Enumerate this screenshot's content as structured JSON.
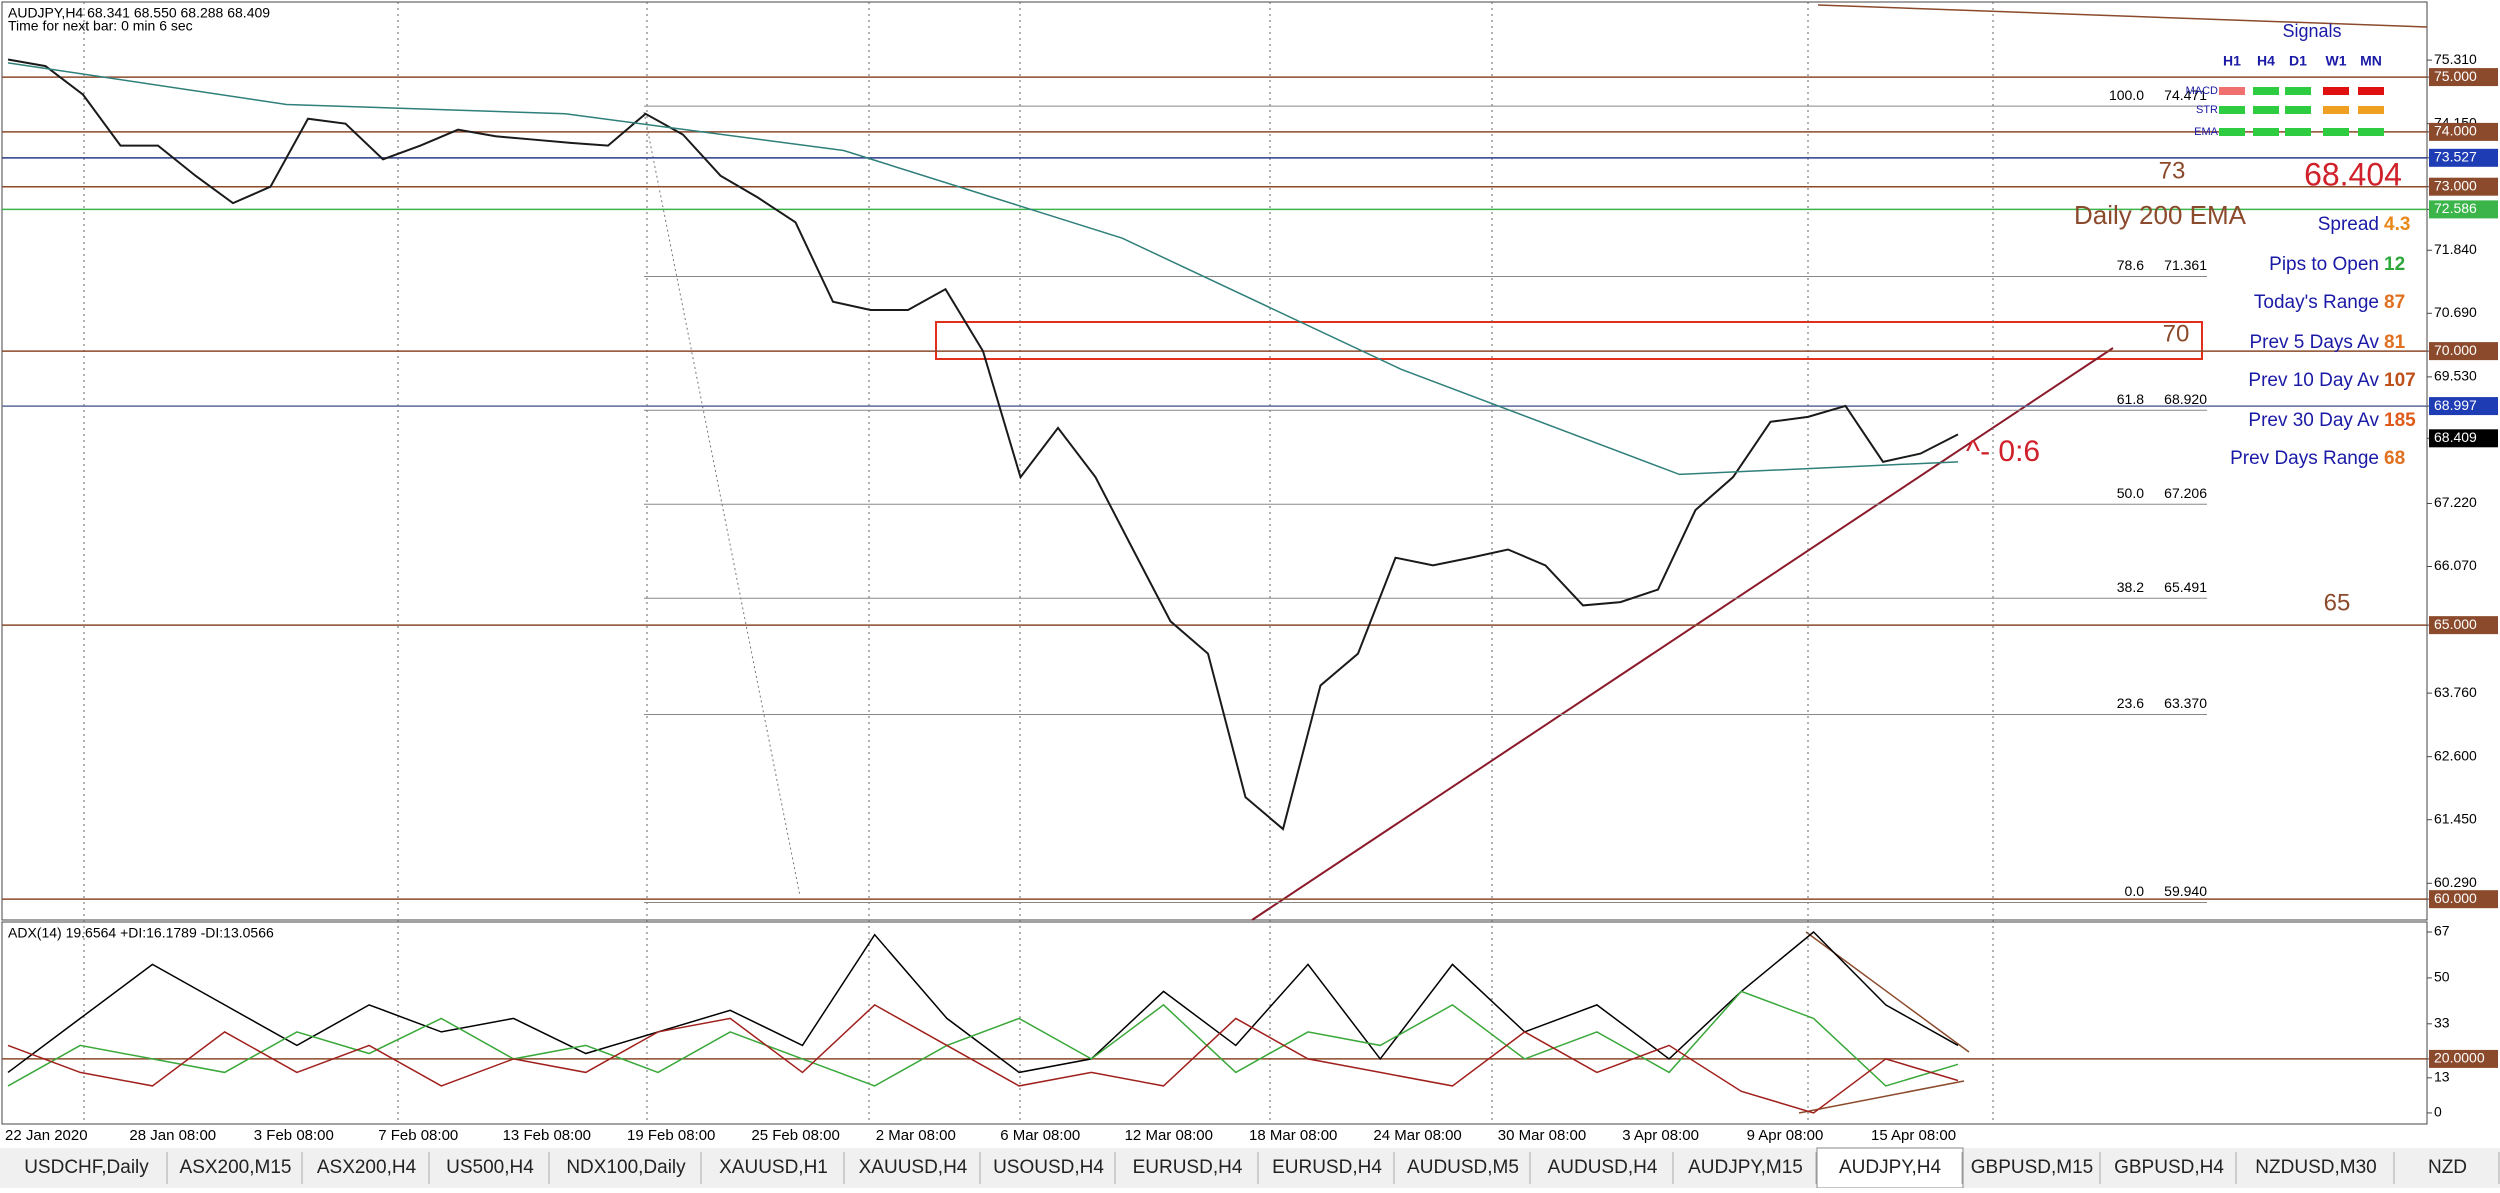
{
  "chart_data": [
    {
      "type": "line",
      "title": "AUDJPY,H4  68.341 68.550 68.288 68.409",
      "subtitle": "Time for next bar: 0 min 6 sec",
      "date_labels": [
        "22 Jan 2020",
        "28 Jan 08:00",
        "3 Feb 08:00",
        "7 Feb 08:00",
        "13 Feb 08:00",
        "19 Feb 08:00",
        "25 Feb 08:00",
        "2 Mar 08:00",
        "6 Mar 08:00",
        "12 Mar 08:00",
        "18 Mar 08:00",
        "24 Mar 08:00",
        "30 Mar 08:00",
        "3 Apr 08:00",
        "9 Apr 08:00",
        "15 Apr 08:00"
      ],
      "ylim": [
        59.62,
        76.37
      ],
      "yticks": [
        {
          "value": 75.31,
          "label": "75.310"
        },
        {
          "value": 75,
          "label": "75.000",
          "bg": "#8b4a2b"
        },
        {
          "value": 74.15,
          "label": "74.150"
        },
        {
          "value": 74,
          "label": "74.000",
          "bg": "#8b4a2b"
        },
        {
          "value": 73.527,
          "label": "73.527",
          "bg": "#1e3cb4"
        },
        {
          "value": 73,
          "label": "73.000",
          "bg": "#8b4a2b"
        },
        {
          "value": 72.586,
          "label": "72.586",
          "bg": "#3bb54a"
        },
        {
          "value": 71.84,
          "label": "71.840"
        },
        {
          "value": 70.69,
          "label": "70.690"
        },
        {
          "value": 70,
          "label": "70.000",
          "bg": "#8b4a2b"
        },
        {
          "value": 69.53,
          "label": "69.530"
        },
        {
          "value": 68.997,
          "label": "68.997",
          "bg": "#1e3cb4"
        },
        {
          "value": 68.409,
          "label": "68.409",
          "bg": "#000000"
        },
        {
          "value": 67.22,
          "label": "67.220"
        },
        {
          "value": 66.07,
          "label": "66.070"
        },
        {
          "value": 65,
          "label": "65.000",
          "bg": "#8b4a2b"
        },
        {
          "value": 63.76,
          "label": "63.760"
        },
        {
          "value": 62.6,
          "label": "62.600"
        },
        {
          "value": 61.45,
          "label": "61.450"
        },
        {
          "value": 60.29,
          "label": "60.290"
        },
        {
          "value": 60,
          "label": "60.000",
          "bg": "#8b4a2b"
        }
      ],
      "levels": [
        {
          "value": 75,
          "color": "#8b4a2b"
        },
        {
          "value": 74,
          "color": "#8b4a2b"
        },
        {
          "value": 73.527,
          "color": "#2a3a8a"
        },
        {
          "value": 73,
          "color": "#8b4a2b"
        },
        {
          "value": 72.586,
          "color": "#3bb54a"
        },
        {
          "value": 70,
          "color": "#8b4a2b"
        },
        {
          "value": 68.997,
          "color": "#5a6a9a"
        },
        {
          "value": 65,
          "color": "#8b4a2b"
        },
        {
          "value": 60,
          "color": "#8b4a2b"
        }
      ],
      "fib": [
        {
          "ratio": "100.0",
          "price": {
            "value": 74.471,
            "label": "74.471"
          }
        },
        {
          "ratio": "78.6",
          "price": {
            "value": 71.361,
            "label": "71.361"
          }
        },
        {
          "ratio": "61.8",
          "price": {
            "value": 68.92,
            "label": "68.920"
          }
        },
        {
          "ratio": "50.0",
          "price": {
            "value": 67.206,
            "label": "67.206"
          }
        },
        {
          "ratio": "38.2",
          "price": {
            "value": 65.491,
            "label": "65.491"
          }
        },
        {
          "ratio": "23.6",
          "price": {
            "value": 63.37,
            "label": "63.370"
          }
        },
        {
          "ratio": "0.0",
          "price": {
            "value": 59.94,
            "label": "59.940"
          }
        }
      ],
      "series": [
        {
          "color": "#1a1a1a",
          "values": [
            75.32,
            75.2,
            74.68,
            73.75,
            73.75,
            73.2,
            72.7,
            73.0,
            74.24,
            74.15,
            73.5,
            73.75,
            74.04,
            73.92,
            73.86,
            73.8,
            73.75,
            74.33,
            73.95,
            73.2,
            72.8,
            72.35,
            70.9,
            70.75,
            70.75,
            71.13,
            70.0,
            67.7,
            68.6,
            67.7,
            66.38,
            65.07,
            64.48,
            61.86,
            61.28,
            63.9,
            64.48,
            66.23,
            66.09,
            66.23,
            66.38,
            66.09,
            65.36,
            65.42,
            65.65,
            67.1,
            67.7,
            68.71,
            68.8,
            69.0,
            67.98,
            68.13,
            68.48
          ]
        },
        {
          "color": "#2f7f7a",
          "values": [
            75.26,
            74.5,
            74.33,
            73.66,
            72.06,
            69.67,
            67.75,
            67.98
          ]
        }
      ],
      "annotations": [
        {
          "text": "73",
          "color": "#8b4a2b"
        },
        {
          "text": "Daily 200 EMA",
          "color": "#8b4a2b"
        },
        {
          "text": "70",
          "color": "#8b4a2b"
        },
        {
          "text": "65",
          "color": "#8b4a2b"
        },
        {
          "text": "^- 0:6",
          "color": "#d0202a"
        }
      ]
    },
    {
      "type": "line",
      "title": "ADX(14) 19.6564 +DI:16.1789 -DI:13.0566",
      "ylim": [
        -4.1,
        70.7
      ],
      "yticks": [
        67,
        50,
        33,
        {
          "value": 20,
          "label": "20.0000",
          "bg": "#8b4a2b"
        },
        13,
        0
      ],
      "level": 20,
      "level_color": "#8b4a2b",
      "series": [
        {
          "color": "#000000",
          "values": [
            15,
            35,
            55,
            40,
            25,
            40,
            30,
            35,
            22,
            30,
            38,
            25,
            66,
            35,
            15,
            20,
            45,
            25,
            55,
            20,
            55,
            30,
            40,
            20,
            45,
            67,
            40,
            25
          ]
        },
        {
          "color": "#3aa83a",
          "values": [
            10,
            25,
            20,
            15,
            30,
            22,
            35,
            20,
            25,
            15,
            30,
            20,
            10,
            25,
            35,
            20,
            40,
            15,
            30,
            25,
            40,
            20,
            30,
            15,
            45,
            35,
            10,
            18
          ]
        },
        {
          "color": "#a0201c",
          "values": [
            25,
            15,
            10,
            30,
            15,
            25,
            10,
            20,
            15,
            30,
            35,
            15,
            40,
            25,
            10,
            15,
            10,
            35,
            20,
            15,
            10,
            30,
            15,
            25,
            8,
            0,
            20,
            12
          ]
        }
      ]
    }
  ],
  "signals": {
    "title": "Signals",
    "columns": [
      "H1",
      "H4",
      "D1",
      "W1",
      "MN"
    ],
    "rows": [
      {
        "name": "MACD",
        "colors": [
          "#f07070",
          "#2ecc40",
          "#2ecc40",
          "#e01010",
          "#e01010"
        ]
      },
      {
        "name": "STR",
        "colors": [
          "#2ecc40",
          "#2ecc40",
          "#2ecc40",
          "#f0a020",
          "#f0a020"
        ]
      },
      {
        "name": "EMA",
        "colors": [
          "#2ecc40",
          "#2ecc40",
          "#2ecc40",
          "#2ecc40",
          "#2ecc40"
        ]
      }
    ]
  },
  "price": 68.404,
  "stats": [
    {
      "label": "Spread",
      "value": 4.3,
      "color": "#e8891a"
    },
    {
      "label": "Pips to Open",
      "value": 12,
      "color": "#2ea83a"
    },
    {
      "label": "Today's Range",
      "value": 87,
      "color": "#e07020"
    },
    {
      "label": "Prev 5 Days Av",
      "value": 81,
      "color": "#e07020"
    },
    {
      "label": "Prev 10 Day Av",
      "value": 107,
      "color": "#c0501a"
    },
    {
      "label": "Prev 30 Day Av",
      "value": 185,
      "color": "#e05a1a"
    },
    {
      "label": "Prev Days Range",
      "value": 68,
      "color": "#e07020"
    }
  ],
  "tabs": {
    "items": [
      "USDCHF,Daily",
      "ASX200,M15",
      "ASX200,H4",
      "US500,H4",
      "NDX100,Daily",
      "XAUUSD,H1",
      "XAUUSD,H4",
      "USOUSD,H4",
      "EURUSD,H4",
      "EURUSD,H4",
      "AUDUSD,M5",
      "AUDUSD,H4",
      "AUDJPY,M15",
      "AUDJPY,H4",
      "GBPUSD,M15",
      "GBPUSD,H4",
      "NZDUSD,M30",
      "NZD"
    ],
    "active": 13
  }
}
